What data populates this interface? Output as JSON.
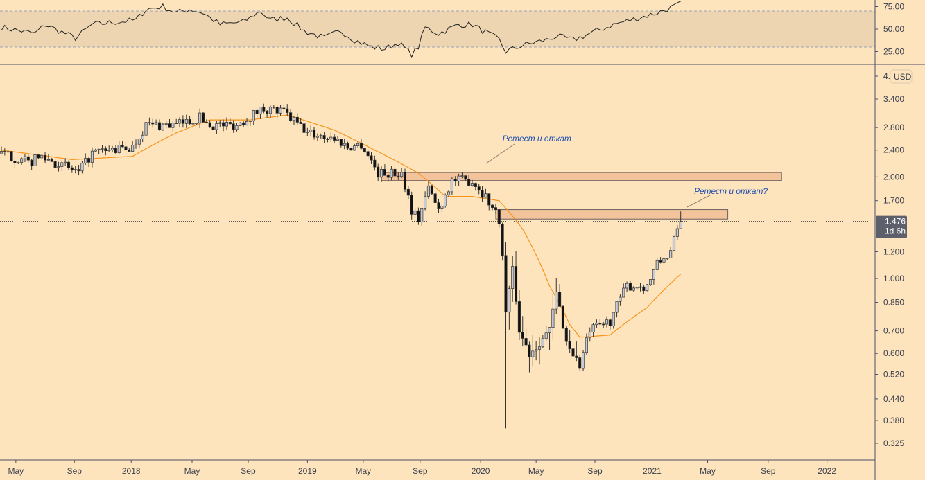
{
  "chart_data": {
    "type": "candlestick",
    "scale": "log",
    "currency_label": "USD",
    "last_price_label": "1.476",
    "countdown_label": "1d 6h",
    "y_ticks": [
      "4.",
      "3.400",
      "2.800",
      "2.400",
      "2.000",
      "1.700",
      "1.200",
      "1.000",
      "0.850",
      "0.700",
      "0.600",
      "0.520",
      "0.440",
      "0.380",
      "0.325"
    ],
    "y_tick_values": [
      4.0,
      3.4,
      2.8,
      2.4,
      2.0,
      1.7,
      1.2,
      1.0,
      0.85,
      0.7,
      0.6,
      0.52,
      0.44,
      0.38,
      0.325
    ],
    "x_ticks": [
      "May",
      "Sep",
      "2018",
      "May",
      "Sep",
      "2019",
      "May",
      "Sep",
      "2020",
      "May",
      "Sep",
      "2021",
      "May",
      "Sep",
      "2022"
    ],
    "x_tick_weeks": [
      4.3,
      21.7,
      38.6,
      56.7,
      73.4,
      91,
      107.6,
      124.5,
      142.5,
      159,
      176.5,
      193.5,
      210,
      228,
      245.5
    ],
    "price_anchors_week_price": [
      [
        0,
        2.35
      ],
      [
        8,
        2.2
      ],
      [
        12,
        2.3
      ],
      [
        23,
        2.05
      ],
      [
        27,
        2.35
      ],
      [
        39,
        2.45
      ],
      [
        43,
        2.85
      ],
      [
        52,
        2.85
      ],
      [
        59,
        3.0
      ],
      [
        62,
        2.85
      ],
      [
        70,
        2.85
      ],
      [
        78,
        3.2
      ],
      [
        84,
        3.1
      ],
      [
        91,
        2.7
      ],
      [
        99,
        2.6
      ],
      [
        103,
        2.45
      ],
      [
        107,
        2.5
      ],
      [
        112,
        2.05
      ],
      [
        119,
        2.05
      ],
      [
        122,
        1.6
      ],
      [
        124,
        1.5
      ],
      [
        127,
        1.85
      ],
      [
        130,
        1.6
      ],
      [
        134,
        1.95
      ],
      [
        140,
        1.95
      ],
      [
        144,
        1.75
      ],
      [
        148,
        1.5
      ],
      [
        150,
        0.8
      ],
      [
        152,
        1.05
      ],
      [
        154,
        0.7
      ],
      [
        157,
        0.6
      ],
      [
        163,
        0.7
      ],
      [
        165,
        0.9
      ],
      [
        168,
        0.65
      ],
      [
        172,
        0.55
      ],
      [
        175,
        0.7
      ],
      [
        181,
        0.75
      ],
      [
        186,
        0.95
      ],
      [
        192,
        0.95
      ],
      [
        195,
        1.1
      ],
      [
        199,
        1.2
      ],
      [
        202,
        1.476
      ]
    ],
    "moving_average_week_price": [
      [
        0,
        2.4
      ],
      [
        21,
        2.25
      ],
      [
        39,
        2.3
      ],
      [
        52,
        2.7
      ],
      [
        62,
        2.95
      ],
      [
        74,
        2.95
      ],
      [
        85,
        3.05
      ],
      [
        99,
        2.75
      ],
      [
        111,
        2.4
      ],
      [
        124,
        2.05
      ],
      [
        132,
        1.75
      ],
      [
        140,
        1.75
      ],
      [
        148,
        1.7
      ],
      [
        155,
        1.4
      ],
      [
        163,
        0.95
      ],
      [
        169,
        0.73
      ],
      [
        172,
        0.67
      ],
      [
        181,
        0.68
      ],
      [
        192,
        0.82
      ],
      [
        202,
        1.03
      ]
    ],
    "resistance_zones": [
      {
        "week_start": 113,
        "week_end": 232,
        "low": 1.95,
        "high": 2.06
      },
      {
        "week_start": 147,
        "week_end": 216,
        "low": 1.5,
        "high": 1.6
      }
    ],
    "annotations": [
      {
        "text": "Ретест и откат",
        "week": 149,
        "price": 2.55
      },
      {
        "text": "Ретест и откат?",
        "week": 206,
        "price": 1.78
      }
    ],
    "rsi": {
      "ticks": [
        "75.00",
        "50.00",
        "25.00"
      ],
      "tick_values": [
        75,
        50,
        25
      ],
      "band": [
        30,
        70
      ],
      "anchors_week_value": [
        [
          0,
          52
        ],
        [
          10,
          45
        ],
        [
          13,
          55
        ],
        [
          22,
          40
        ],
        [
          27,
          55
        ],
        [
          40,
          60
        ],
        [
          43,
          72
        ],
        [
          48,
          75
        ],
        [
          52,
          68
        ],
        [
          56,
          72
        ],
        [
          60,
          68
        ],
        [
          65,
          55
        ],
        [
          72,
          58
        ],
        [
          77,
          70
        ],
        [
          80,
          60
        ],
        [
          85,
          63
        ],
        [
          90,
          48
        ],
        [
          96,
          40
        ],
        [
          101,
          48
        ],
        [
          105,
          38
        ],
        [
          110,
          30
        ],
        [
          114,
          28
        ],
        [
          118,
          35
        ],
        [
          122,
          22
        ],
        [
          124,
          30
        ],
        [
          126,
          52
        ],
        [
          130,
          45
        ],
        [
          136,
          55
        ],
        [
          140,
          55
        ],
        [
          148,
          38
        ],
        [
          150,
          25
        ],
        [
          155,
          32
        ],
        [
          162,
          38
        ],
        [
          165,
          42
        ],
        [
          170,
          38
        ],
        [
          175,
          45
        ],
        [
          182,
          55
        ],
        [
          190,
          63
        ],
        [
          195,
          68
        ],
        [
          200,
          75
        ],
        [
          202,
          78
        ]
      ]
    }
  }
}
